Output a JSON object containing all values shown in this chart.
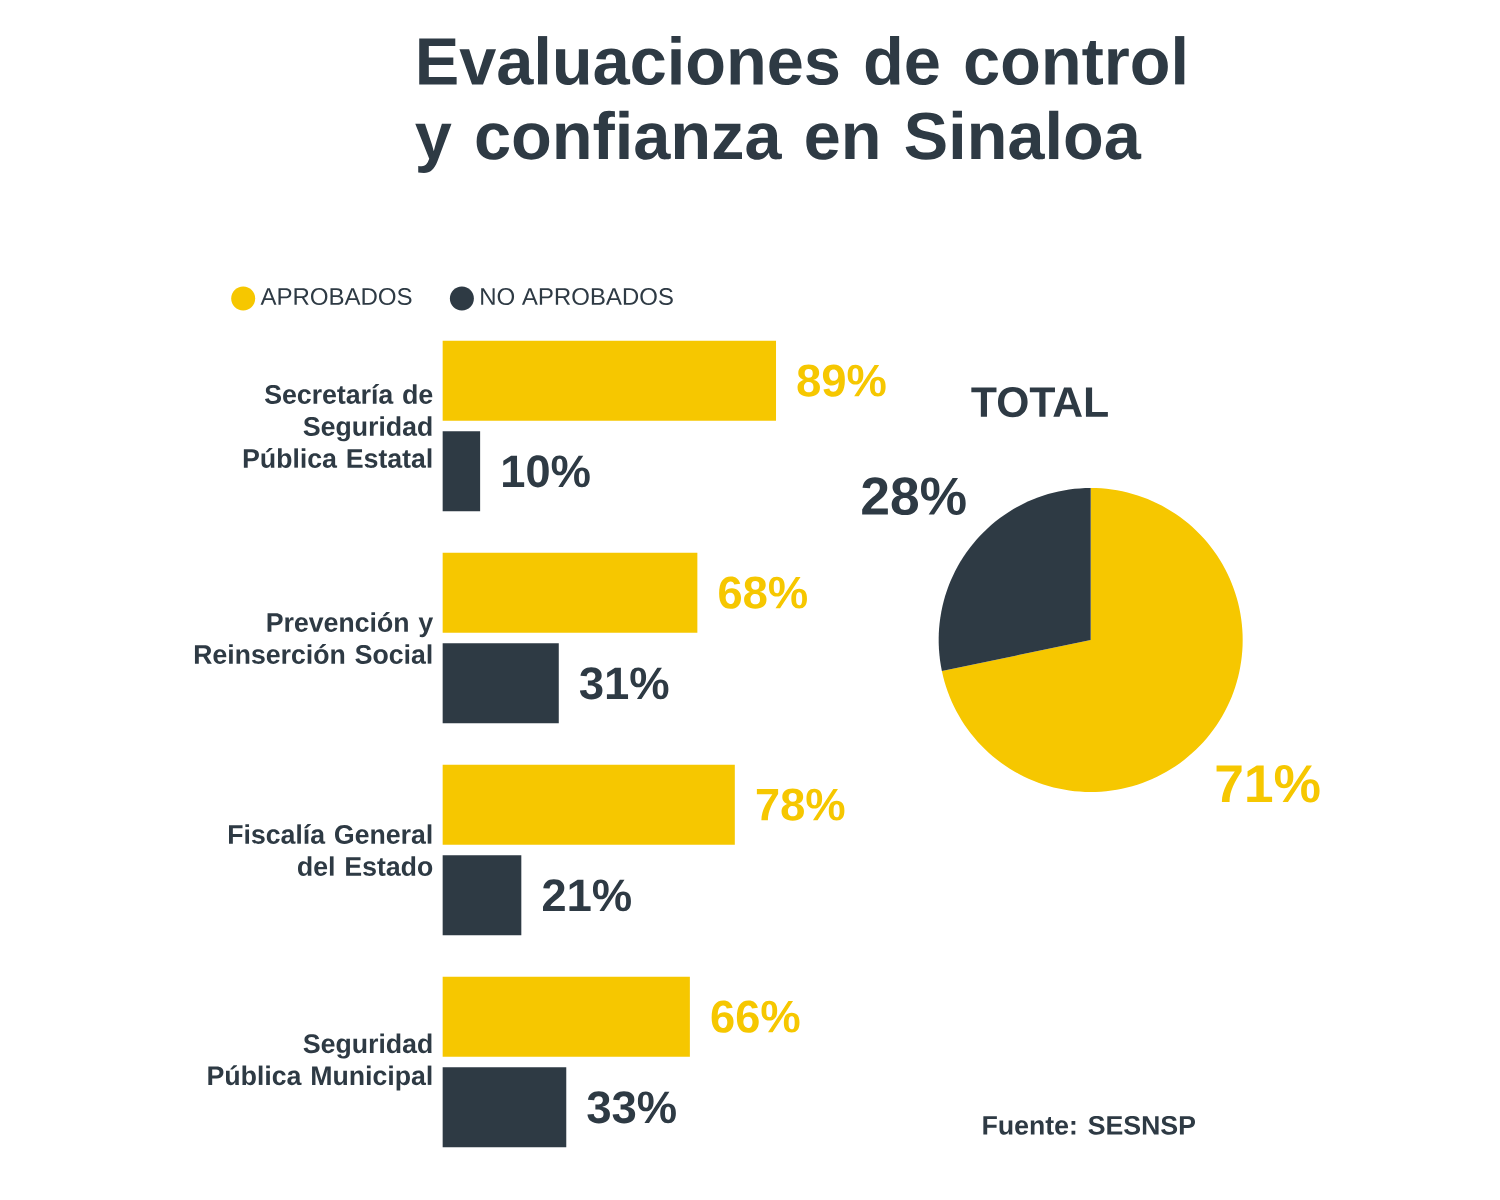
{
  "chart_data": [
    {
      "type": "bar",
      "orientation": "horizontal",
      "title": "Evaluaciones de control y confianza en Sinaloa",
      "legend": "top left",
      "categories": [
        "Secretaría de Seguridad Pública Estatal",
        "Prevención y Reinserción Social",
        "Fiscalía General del Estado",
        "Seguridad Pública Municipal"
      ],
      "series": [
        {
          "name": "APROBADOS",
          "color": "#f6c700",
          "values": [
            89,
            68,
            78,
            66
          ],
          "value_labels": [
            "89%",
            "68%",
            "78%",
            "66%"
          ]
        },
        {
          "name": "NO APROBADOS",
          "color": "#2e3a44",
          "values": [
            10,
            31,
            21,
            33
          ],
          "value_labels": [
            "10%",
            "31%",
            "21%",
            "33%"
          ]
        }
      ]
    },
    {
      "type": "pie",
      "title": "TOTAL",
      "categories": [
        null,
        null
      ],
      "values": [
        71,
        28
      ],
      "colors": [
        "#f6c700",
        "#2e3a44"
      ],
      "value_labels": [
        "71%",
        "28%"
      ],
      "annotations": [
        "Fuente: SESNSP"
      ]
    }
  ]
}
